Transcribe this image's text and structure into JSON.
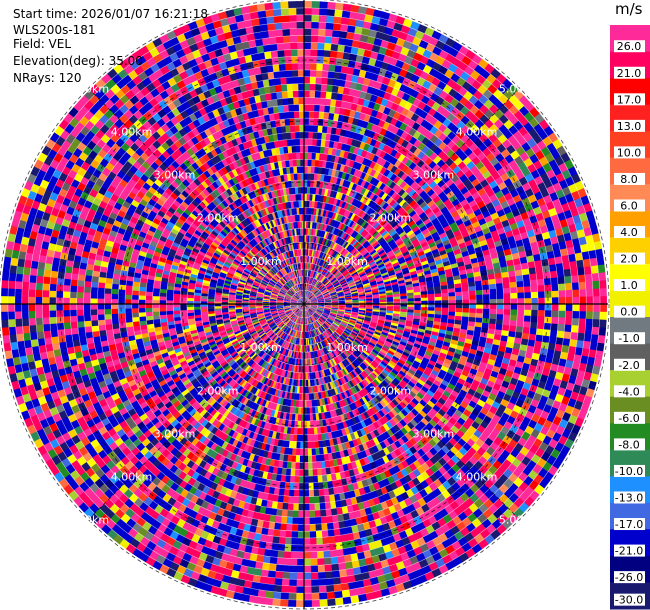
{
  "header": {
    "start_time": "Start time: 2026/01/07 16:21:18",
    "instrument": "WLS200s-181",
    "field": "Field: VEL",
    "elevation": "Elevation(deg): 35.00",
    "nrays": "NRays: 120"
  },
  "chart_data": {
    "type": "heatmap",
    "projection": "polar-ppi",
    "field": "VEL",
    "nrays": 120,
    "range_rings_km": [
      1.0,
      2.0,
      3.0,
      4.0,
      5.0
    ],
    "ring_labels": [
      "1.00km",
      "2.00km",
      "3.00km",
      "4.00km",
      "5.00km"
    ],
    "grid": "dashed range rings and radial spokes",
    "colorbar": {
      "unit": "m/s",
      "position": "right",
      "tick_labels": [
        "26.0",
        "21.0",
        "17.0",
        "13.0",
        "10.0",
        "8.0",
        "6.0",
        "4.0",
        "2.0",
        "1.0",
        "0.0",
        "-1.0",
        "-2.0",
        "-4.0",
        "-6.0",
        "-8.0",
        "-10.0",
        "-13.0",
        "-17.0",
        "-21.0",
        "-26.0",
        "-30.0"
      ],
      "colors": [
        "#ff2a9a",
        "#ff0060",
        "#ff0000",
        "#ff2020",
        "#ff4020",
        "#ff6a40",
        "#ff8a55",
        "#ffa000",
        "#ffd000",
        "#ffff00",
        "#f0f000",
        "#707a80",
        "#606060",
        "#a8d030",
        "#6b8e23",
        "#228b22",
        "#2e8b57",
        "#1e90ff",
        "#4169e1",
        "#0000cd",
        "#000080",
        "#191970"
      ]
    }
  }
}
